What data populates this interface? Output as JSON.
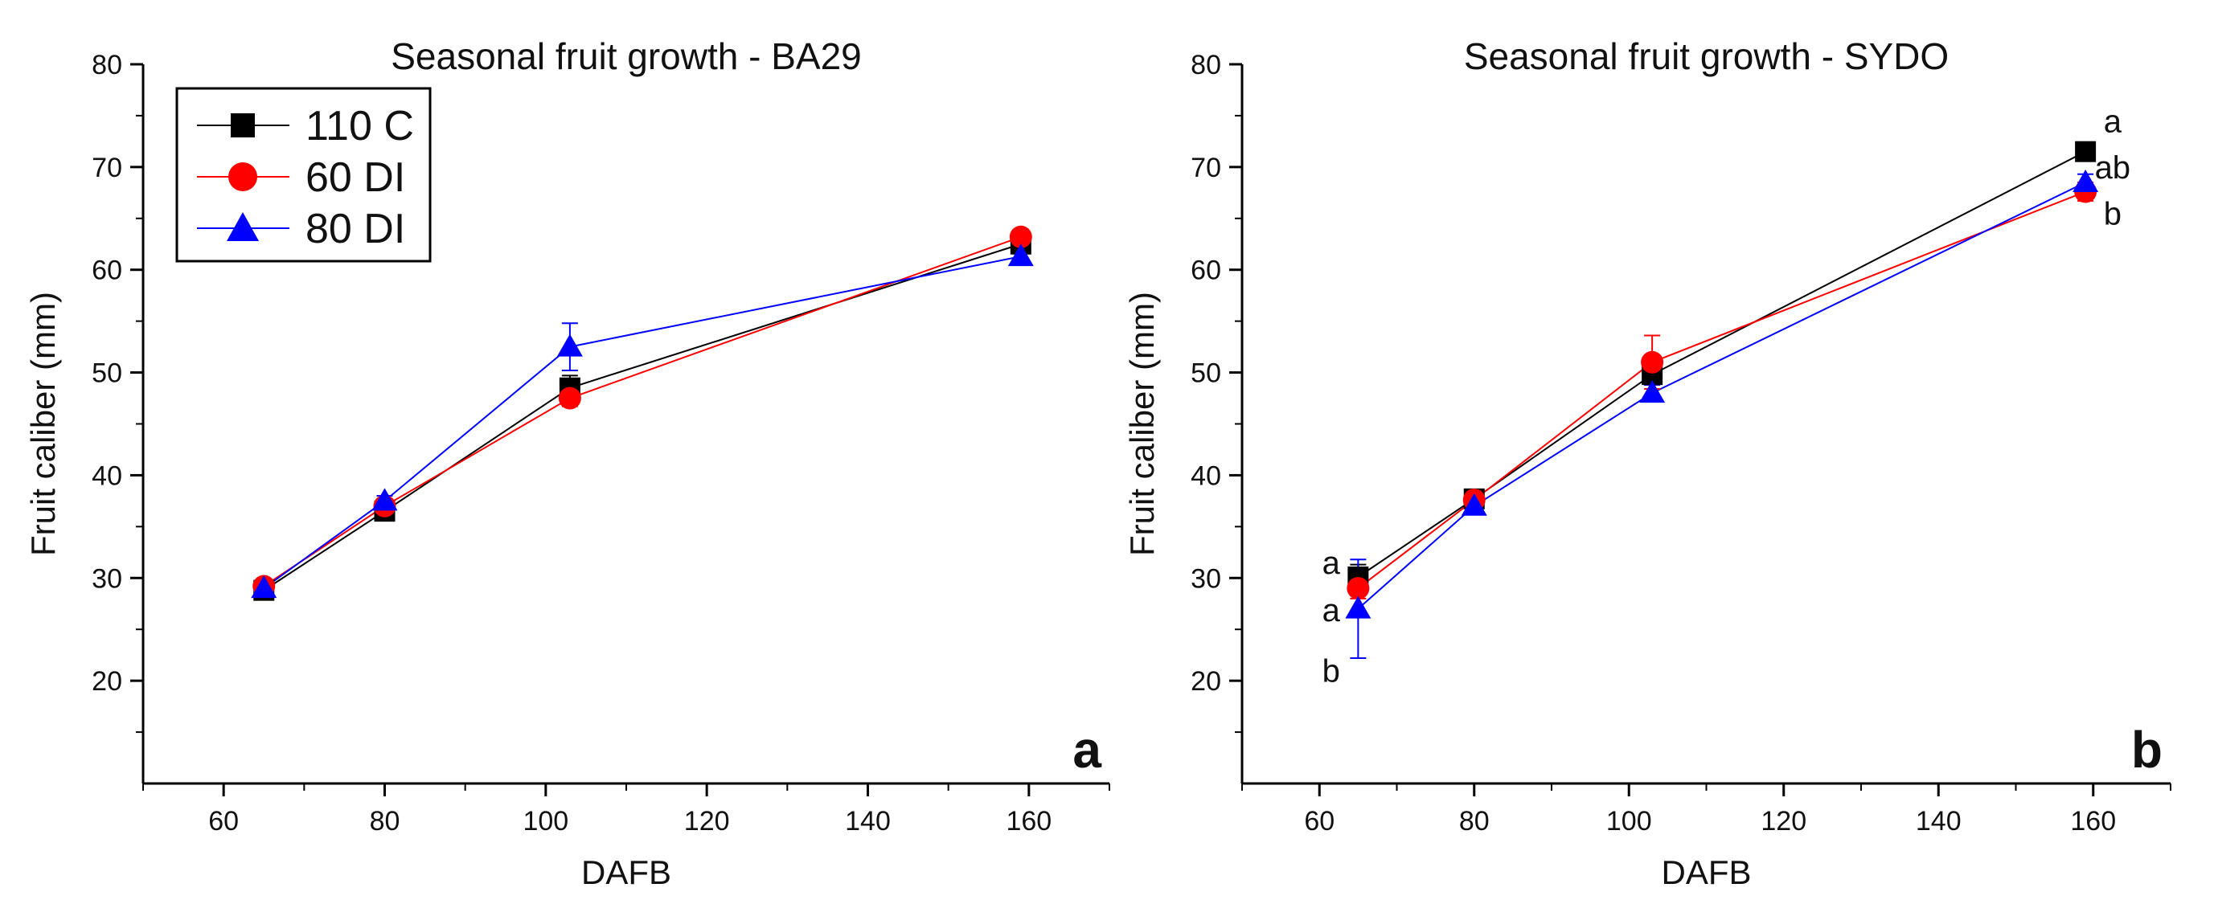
{
  "chart_data": [
    {
      "type": "line",
      "title": "Seasonal fruit growth - BA29",
      "xlabel": "DAFB",
      "ylabel": "Fruit caliber (mm)",
      "xlim": [
        50,
        170
      ],
      "ylim": [
        10,
        80
      ],
      "xticks": [
        60,
        80,
        100,
        120,
        140,
        160
      ],
      "yticks": [
        20,
        30,
        40,
        50,
        60,
        70,
        80
      ],
      "panel_label": "a",
      "legend_position": "top-left",
      "grid": false,
      "series": [
        {
          "name": "110 C",
          "color": "#000000",
          "marker": "square",
          "x": [
            65,
            80,
            103,
            159
          ],
          "y": [
            28.8,
            36.5,
            48.5,
            62.5
          ],
          "err": [
            0.5,
            0.5,
            1.2,
            0.6
          ]
        },
        {
          "name": "60 DI",
          "color": "#ff0000",
          "marker": "circle",
          "x": [
            65,
            80,
            103,
            159
          ],
          "y": [
            29.2,
            37.0,
            47.5,
            63.2
          ],
          "err": [
            0.4,
            0.5,
            0.8,
            0.7
          ]
        },
        {
          "name": "80 DI",
          "color": "#0000ff",
          "marker": "triangle",
          "x": [
            65,
            80,
            103,
            159
          ],
          "y": [
            29.0,
            37.5,
            52.5,
            61.3
          ],
          "err": [
            0.4,
            0.5,
            2.3,
            0.8
          ]
        }
      ],
      "annotations": []
    },
    {
      "type": "line",
      "title": "Seasonal fruit growth - SYDO",
      "xlabel": "DAFB",
      "ylabel": "Fruit caliber (mm)",
      "xlim": [
        50,
        170
      ],
      "ylim": [
        10,
        80
      ],
      "xticks": [
        60,
        80,
        100,
        120,
        140,
        160
      ],
      "yticks": [
        20,
        30,
        40,
        50,
        60,
        70,
        80
      ],
      "panel_label": "b",
      "grid": false,
      "series": [
        {
          "name": "110 C",
          "color": "#000000",
          "marker": "square",
          "x": [
            65,
            80,
            103,
            159
          ],
          "y": [
            30.1,
            37.7,
            49.8,
            71.5
          ],
          "err": [
            1.2,
            0.5,
            1.0,
            0.9
          ]
        },
        {
          "name": "60 DI",
          "color": "#ff0000",
          "marker": "circle",
          "x": [
            65,
            80,
            103,
            159
          ],
          "y": [
            29.0,
            37.6,
            51.0,
            67.6
          ],
          "err": [
            1.0,
            0.5,
            2.6,
            0.9
          ]
        },
        {
          "name": "80 DI",
          "color": "#0000ff",
          "marker": "triangle",
          "x": [
            65,
            80,
            103,
            159
          ],
          "y": [
            27.0,
            37.0,
            48.0,
            68.5
          ],
          "err": [
            4.8,
            0.5,
            0.8,
            0.8
          ]
        }
      ],
      "annotations": [
        {
          "text": "a",
          "x": 61.5,
          "y": 31.5
        },
        {
          "text": "a",
          "x": 61.5,
          "y": 26.9
        },
        {
          "text": "b",
          "x": 61.5,
          "y": 21.0
        },
        {
          "text": "a",
          "x": 162.5,
          "y": 74.5
        },
        {
          "text": "ab",
          "x": 162.5,
          "y": 70.0
        },
        {
          "text": "b",
          "x": 162.5,
          "y": 65.5
        }
      ]
    }
  ]
}
